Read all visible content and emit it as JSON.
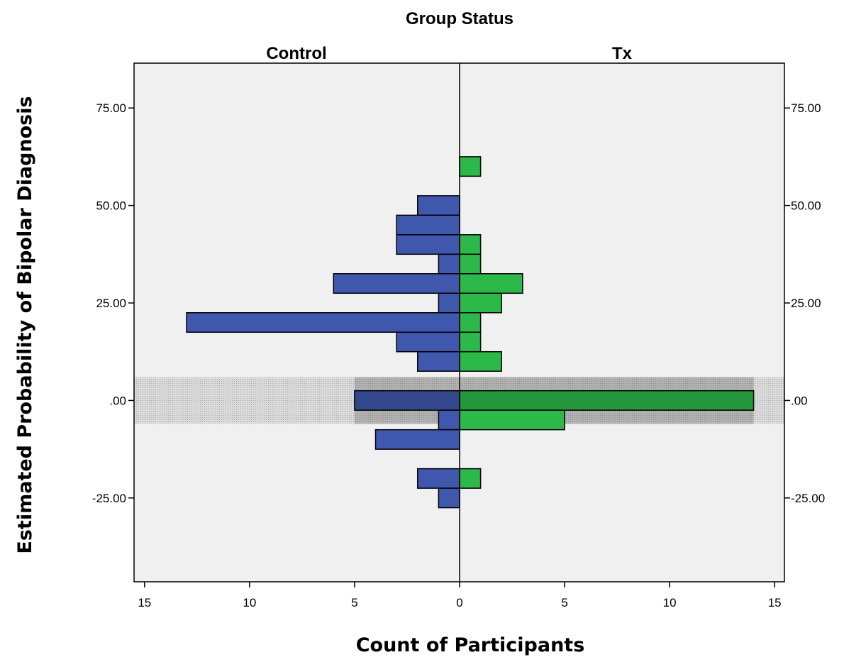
{
  "chart_data": {
    "type": "bar",
    "orientation": "horizontal",
    "layout": "population-pyramid",
    "title": "Group Status",
    "panels": [
      "Control",
      "Tx"
    ],
    "xlabel": "Count of Participants",
    "ylabel": "Estimated Probability of Bipolar Diagnosis",
    "xlim": [
      0,
      15.5
    ],
    "x_ticks": [
      15,
      10,
      5,
      0,
      5,
      10,
      15
    ],
    "ylim": [
      -46.5,
      86.5
    ],
    "y_ticks": [
      75,
      50,
      25,
      0,
      -25
    ],
    "y_tick_labels": [
      "75.00",
      "50.00",
      "25.00",
      ".00",
      "-25.00"
    ],
    "bin_width": 5,
    "bins": [
      60,
      50,
      45,
      40,
      35,
      30,
      25,
      20,
      15,
      10,
      0,
      -5,
      -10,
      -20,
      -25
    ],
    "series": [
      {
        "name": "Control",
        "color": "#3f57ad",
        "values": [
          0,
          2,
          3,
          3,
          1,
          6,
          1,
          13,
          3,
          2,
          5,
          1,
          4,
          2,
          1
        ]
      },
      {
        "name": "Tx",
        "color": "#2db84a",
        "values": [
          1,
          0,
          0,
          1,
          1,
          3,
          2,
          1,
          1,
          2,
          14,
          5,
          0,
          1,
          0
        ]
      }
    ],
    "highlight_band": {
      "from": -6,
      "to": 6
    },
    "grid": false,
    "background_color": "#f0f0f0"
  }
}
